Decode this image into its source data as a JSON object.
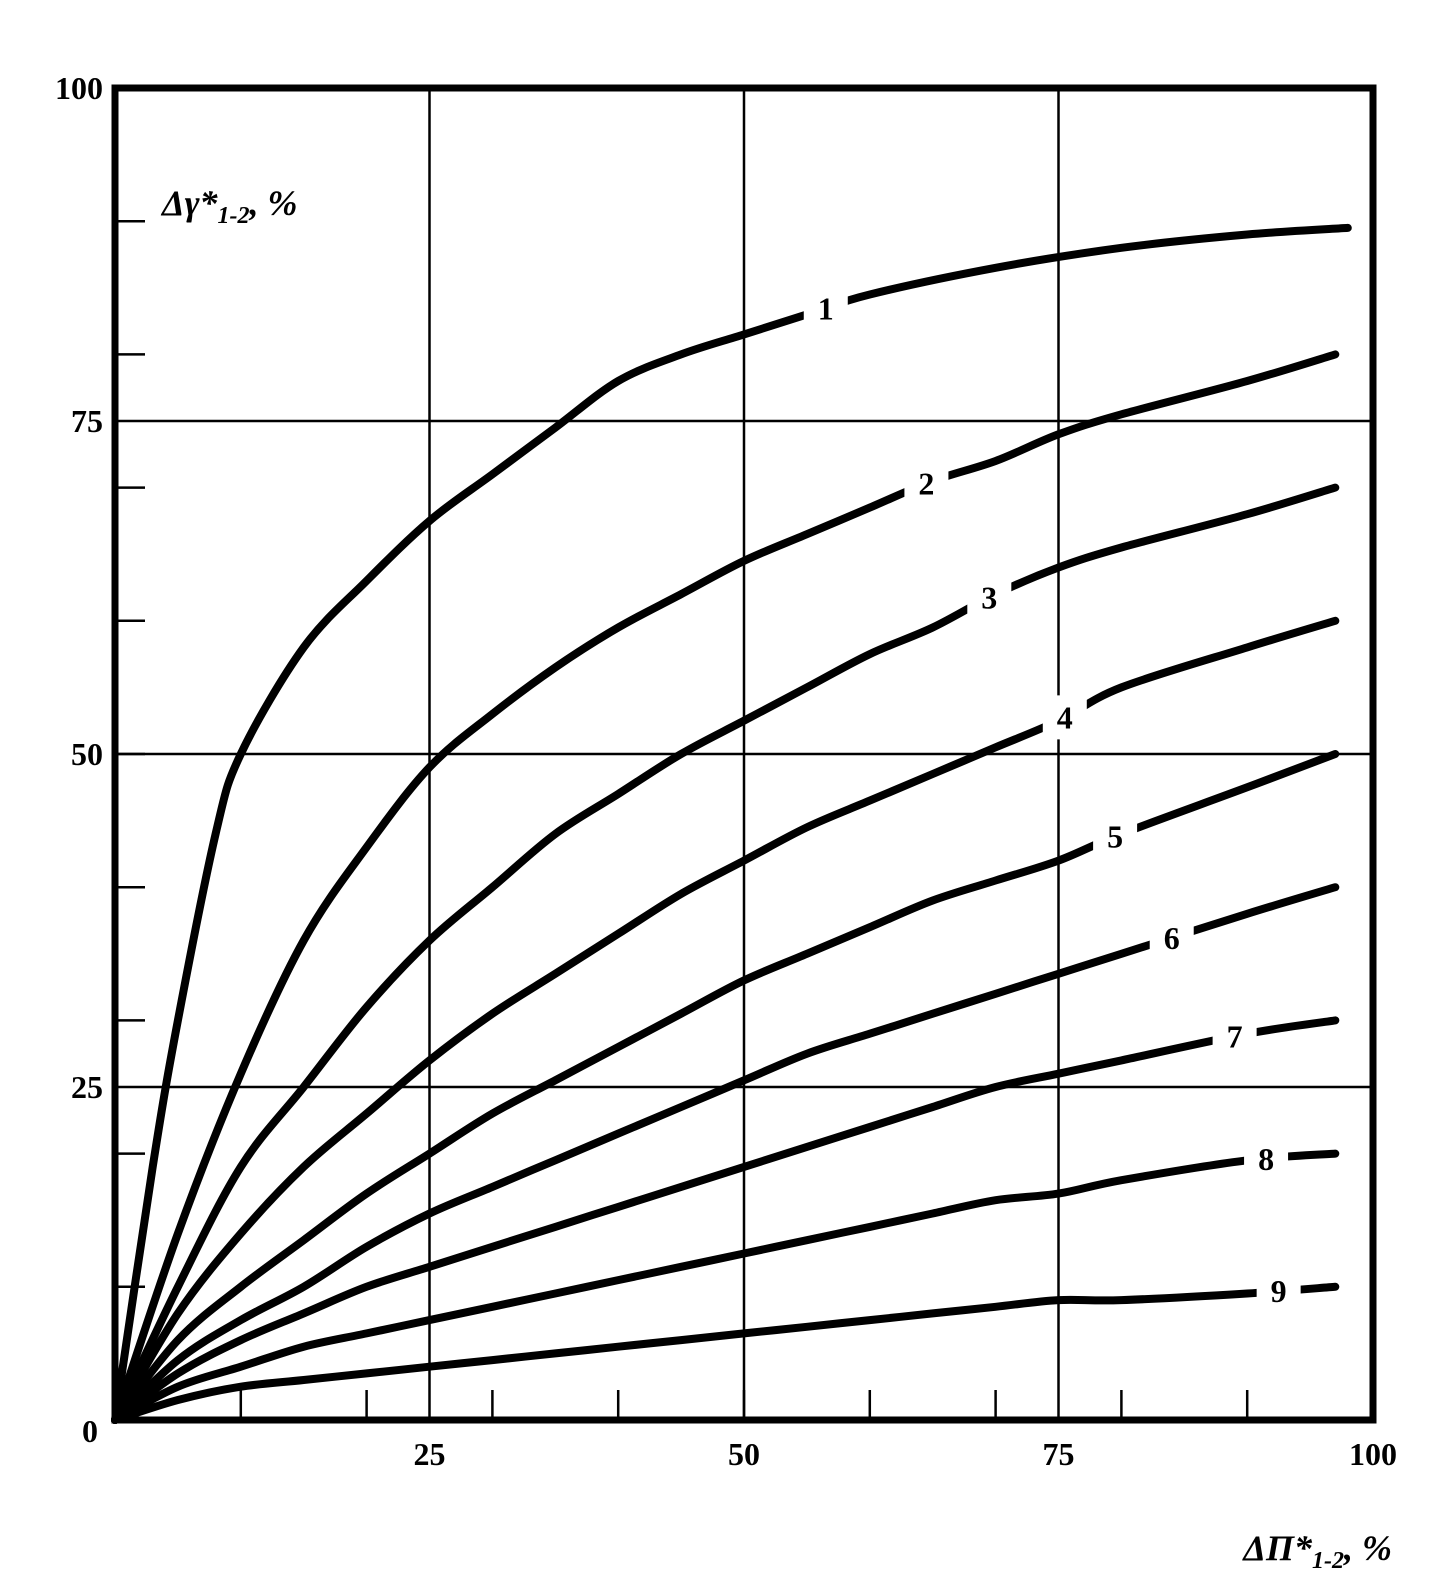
{
  "chart_data": {
    "type": "line",
    "xlabel": {
      "main": "ΔΠ*",
      "sub": "1-2",
      "unit": ",  %"
    },
    "ylabel": {
      "main": "Δγ*",
      "sub": "1-2",
      "unit": ",   %"
    },
    "xlim": [
      0,
      100
    ],
    "ylim": [
      0,
      100
    ],
    "x_ticks": [
      "0",
      "25",
      "50",
      "75",
      "100"
    ],
    "y_ticks": [
      "0",
      "25",
      "50",
      "75",
      "100"
    ],
    "x_tick_values": [
      0,
      25,
      50,
      75,
      100
    ],
    "y_tick_values": [
      0,
      25,
      50,
      75,
      100
    ],
    "x_minor_step": 10,
    "y_minor_step": 10,
    "grid": true,
    "grid_color": "#000000",
    "line_color": "#000000",
    "series": [
      {
        "name": "1",
        "points": [
          [
            0,
            0
          ],
          [
            3,
            19
          ],
          [
            5,
            30
          ],
          [
            8,
            44
          ],
          [
            10,
            50
          ],
          [
            15,
            58
          ],
          [
            20,
            63
          ],
          [
            25,
            67.5
          ],
          [
            30,
            71
          ],
          [
            35,
            74.5
          ],
          [
            40,
            78
          ],
          [
            45,
            80
          ],
          [
            50,
            81.5
          ],
          [
            55,
            83
          ],
          [
            60,
            84.5
          ],
          [
            70,
            86.5
          ],
          [
            80,
            88
          ],
          [
            90,
            89
          ],
          [
            98,
            89.5
          ]
        ]
      },
      {
        "name": "2",
        "points": [
          [
            0,
            0
          ],
          [
            5,
            14
          ],
          [
            10,
            26
          ],
          [
            15,
            36
          ],
          [
            20,
            43
          ],
          [
            25,
            49
          ],
          [
            30,
            53
          ],
          [
            35,
            56.5
          ],
          [
            40,
            59.5
          ],
          [
            45,
            62
          ],
          [
            50,
            64.5
          ],
          [
            55,
            66.5
          ],
          [
            60,
            68.5
          ],
          [
            65,
            70.5
          ],
          [
            70,
            72
          ],
          [
            75,
            74
          ],
          [
            80,
            75.5
          ],
          [
            90,
            78
          ],
          [
            97,
            80
          ]
        ]
      },
      {
        "name": "3",
        "points": [
          [
            0,
            0
          ],
          [
            5,
            10
          ],
          [
            10,
            19
          ],
          [
            15,
            25
          ],
          [
            20,
            31
          ],
          [
            25,
            36
          ],
          [
            30,
            40
          ],
          [
            35,
            44
          ],
          [
            40,
            47
          ],
          [
            45,
            50
          ],
          [
            50,
            52.5
          ],
          [
            55,
            55
          ],
          [
            60,
            57.5
          ],
          [
            65,
            59.5
          ],
          [
            70,
            62
          ],
          [
            75,
            64
          ],
          [
            80,
            65.5
          ],
          [
            90,
            68
          ],
          [
            97,
            70
          ]
        ]
      },
      {
        "name": "4",
        "points": [
          [
            0,
            0
          ],
          [
            5,
            8
          ],
          [
            10,
            14
          ],
          [
            15,
            19
          ],
          [
            20,
            23
          ],
          [
            25,
            27
          ],
          [
            30,
            30.5
          ],
          [
            35,
            33.5
          ],
          [
            40,
            36.5
          ],
          [
            45,
            39.5
          ],
          [
            50,
            42
          ],
          [
            55,
            44.5
          ],
          [
            60,
            46.5
          ],
          [
            65,
            48.5
          ],
          [
            70,
            50.5
          ],
          [
            75,
            52.5
          ],
          [
            80,
            55
          ],
          [
            90,
            58
          ],
          [
            97,
            60
          ]
        ]
      },
      {
        "name": "5",
        "points": [
          [
            0,
            0
          ],
          [
            5,
            6
          ],
          [
            10,
            10
          ],
          [
            15,
            13.5
          ],
          [
            20,
            17
          ],
          [
            25,
            20
          ],
          [
            30,
            23
          ],
          [
            35,
            25.5
          ],
          [
            40,
            28
          ],
          [
            45,
            30.5
          ],
          [
            50,
            33
          ],
          [
            55,
            35
          ],
          [
            60,
            37
          ],
          [
            65,
            39
          ],
          [
            70,
            40.5
          ],
          [
            75,
            42
          ],
          [
            80,
            44
          ],
          [
            90,
            47.5
          ],
          [
            97,
            50
          ]
        ]
      },
      {
        "name": "6",
        "points": [
          [
            0,
            0
          ],
          [
            5,
            4.5
          ],
          [
            10,
            7.5
          ],
          [
            15,
            10
          ],
          [
            20,
            13
          ],
          [
            25,
            15.5
          ],
          [
            30,
            17.5
          ],
          [
            35,
            19.5
          ],
          [
            40,
            21.5
          ],
          [
            45,
            23.5
          ],
          [
            50,
            25.5
          ],
          [
            55,
            27.5
          ],
          [
            60,
            29
          ],
          [
            65,
            30.5
          ],
          [
            70,
            32
          ],
          [
            75,
            33.5
          ],
          [
            80,
            35
          ],
          [
            90,
            38
          ],
          [
            97,
            40
          ]
        ]
      },
      {
        "name": "7",
        "points": [
          [
            0,
            0
          ],
          [
            5,
            3.5
          ],
          [
            10,
            6
          ],
          [
            15,
            8
          ],
          [
            20,
            10
          ],
          [
            25,
            11.5
          ],
          [
            30,
            13
          ],
          [
            35,
            14.5
          ],
          [
            40,
            16
          ],
          [
            45,
            17.5
          ],
          [
            50,
            19
          ],
          [
            55,
            20.5
          ],
          [
            60,
            22
          ],
          [
            65,
            23.5
          ],
          [
            70,
            25
          ],
          [
            75,
            26
          ],
          [
            80,
            27
          ],
          [
            90,
            29
          ],
          [
            97,
            30
          ]
        ]
      },
      {
        "name": "8",
        "points": [
          [
            0,
            0
          ],
          [
            5,
            2.5
          ],
          [
            10,
            4
          ],
          [
            15,
            5.5
          ],
          [
            20,
            6.5
          ],
          [
            25,
            7.5
          ],
          [
            30,
            8.5
          ],
          [
            35,
            9.5
          ],
          [
            40,
            10.5
          ],
          [
            45,
            11.5
          ],
          [
            50,
            12.5
          ],
          [
            55,
            13.5
          ],
          [
            60,
            14.5
          ],
          [
            65,
            15.5
          ],
          [
            70,
            16.5
          ],
          [
            75,
            17
          ],
          [
            80,
            18
          ],
          [
            90,
            19.5
          ],
          [
            97,
            20
          ]
        ]
      },
      {
        "name": "9",
        "points": [
          [
            0,
            0
          ],
          [
            5,
            1.5
          ],
          [
            10,
            2.5
          ],
          [
            15,
            3
          ],
          [
            20,
            3.5
          ],
          [
            25,
            4
          ],
          [
            30,
            4.5
          ],
          [
            35,
            5
          ],
          [
            40,
            5.5
          ],
          [
            45,
            6
          ],
          [
            50,
            6.5
          ],
          [
            55,
            7
          ],
          [
            60,
            7.5
          ],
          [
            65,
            8
          ],
          [
            70,
            8.5
          ],
          [
            75,
            9
          ],
          [
            80,
            9
          ],
          [
            90,
            9.5
          ],
          [
            97,
            10
          ]
        ]
      }
    ]
  }
}
